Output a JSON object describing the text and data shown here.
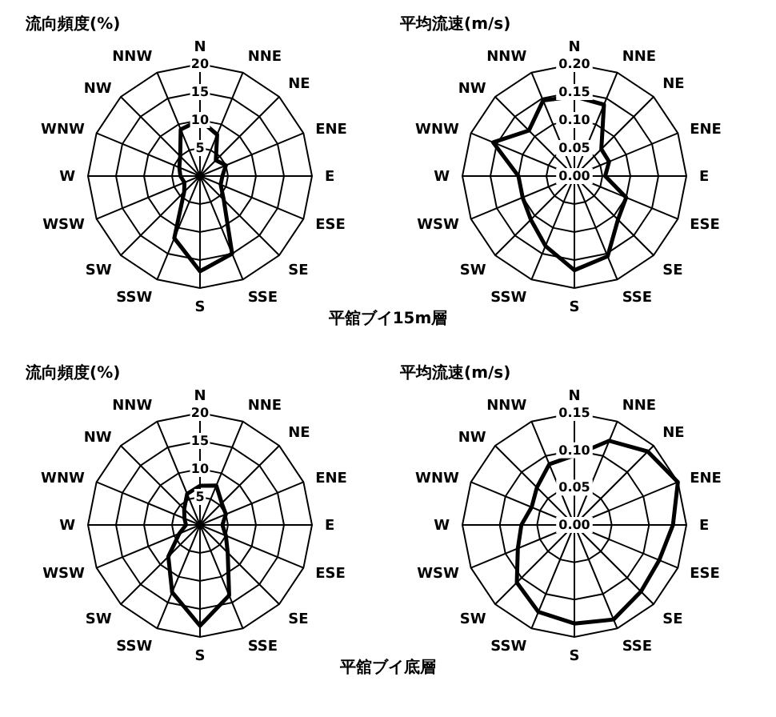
{
  "chart_data": [
    {
      "type": "radar",
      "title": "流向頻度(%)",
      "categories": [
        "N",
        "NNE",
        "NE",
        "ENE",
        "E",
        "ESE",
        "SE",
        "SSE",
        "S",
        "SSW",
        "SW",
        "WSW",
        "W",
        "WNW",
        "NW",
        "NNW"
      ],
      "series": [
        {
          "color": "#000000",
          "values": [
            10,
            8,
            4,
            5,
            4,
            4,
            6,
            15,
            17,
            12,
            4,
            3,
            3.5,
            4,
            5,
            9
          ]
        }
      ],
      "ylim": [
        0,
        20
      ],
      "yticks": [
        5,
        10,
        15,
        20
      ],
      "grid": true,
      "marker": "none",
      "line_style": "solid"
    },
    {
      "type": "radar",
      "title": "平均流速(m/s)",
      "categories": [
        "N",
        "NNE",
        "NE",
        "ENE",
        "E",
        "ESE",
        "SE",
        "SSE",
        "S",
        "SSW",
        "SW",
        "WSW",
        "W",
        "WNW",
        "NW",
        "NNW"
      ],
      "series": [
        {
          "color": "#000000",
          "values": [
            0.142,
            0.138,
            0.068,
            0.067,
            0.055,
            0.1,
            0.11,
            0.155,
            0.168,
            0.135,
            0.11,
            0.1,
            0.1,
            0.157,
            0.115,
            0.146
          ]
        }
      ],
      "ylim": [
        0,
        0.2
      ],
      "yticks": [
        {
          "value": 0,
          "label": "0.00"
        },
        {
          "value": 0.05,
          "label": "0.05"
        },
        {
          "value": 0.1,
          "label": "0.10"
        },
        {
          "value": 0.15,
          "label": "0.15"
        },
        {
          "value": 0.2,
          "label": "0.20"
        }
      ],
      "grid": true,
      "marker": "none",
      "line_style": "solid",
      "annotations": [
        "平舘ブイ15m層"
      ]
    },
    {
      "type": "radar",
      "title": "流向頻度(%)",
      "categories": [
        "N",
        "NNE",
        "NE",
        "ENE",
        "E",
        "ESE",
        "SE",
        "SSE",
        "S",
        "SSW",
        "SW",
        "WSW",
        "W",
        "WNW",
        "NW",
        "NNW"
      ],
      "series": [
        {
          "color": "#000000",
          "values": [
            7,
            7.6,
            5.5,
            5,
            4,
            5,
            7,
            13.6,
            18,
            13,
            8,
            4,
            2.5,
            3,
            4,
            6
          ]
        }
      ],
      "ylim": [
        0,
        20
      ],
      "yticks": [
        5,
        10,
        15,
        20
      ],
      "grid": true,
      "marker": "none",
      "line_style": "solid"
    },
    {
      "type": "radar",
      "title": "平均流速(m/s)",
      "categories": [
        "N",
        "NNE",
        "NE",
        "ENE",
        "E",
        "ESE",
        "SE",
        "SSE",
        "S",
        "SSW",
        "SW",
        "WSW",
        "W",
        "WNW",
        "NW",
        "NNW"
      ],
      "series": [
        {
          "color": "#000000",
          "values": [
            0.093,
            0.122,
            0.139,
            0.15,
            0.132,
            0.123,
            0.126,
            0.137,
            0.132,
            0.126,
            0.109,
            0.082,
            0.071,
            0.062,
            0.071,
            0.088
          ]
        }
      ],
      "ylim": [
        0,
        0.15
      ],
      "yticks": [
        {
          "value": 0,
          "label": "0.00"
        },
        {
          "value": 0.05,
          "label": "0.05"
        },
        {
          "value": 0.1,
          "label": "0.10"
        },
        {
          "value": 0.15,
          "label": "0.15"
        }
      ],
      "grid": true,
      "marker": "none",
      "line_style": "solid",
      "annotations": [
        "平舘ブイ底層"
      ]
    }
  ]
}
